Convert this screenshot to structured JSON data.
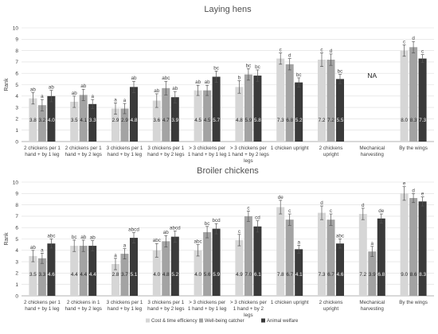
{
  "colors": {
    "cost": "#d6d6d6",
    "wellbeing": "#a3a3a3",
    "welfare": "#3a3a3a",
    "grid": "#dedede",
    "axis": "#9a9a9a",
    "title": "#505050",
    "text": "#404040"
  },
  "legend": {
    "position": "bottom-center",
    "items": [
      "Cost & time efficiency",
      "Well-being catcher",
      "Animal welfare"
    ]
  },
  "chart_data": [
    {
      "type": "bar",
      "title": "Laying hens",
      "ylabel": "Rank",
      "ylim": [
        0,
        10
      ],
      "yticks": [
        0,
        1,
        2,
        3,
        4,
        5,
        6,
        7,
        8,
        9,
        10
      ],
      "grid": true,
      "categories": [
        [
          "2 chickens per 1",
          "hand + by 1 leg"
        ],
        [
          "2 chickens per 1",
          "hand + by 2 legs"
        ],
        [
          "3 chickens per 1",
          "hand + by 1 leg"
        ],
        [
          "3 chickens per 1",
          "hand + by 2 legs"
        ],
        [
          "> 3 chickens per",
          "1 hand + by 1 leg"
        ],
        [
          "> 3 chickens per",
          "1 hand + by 2 legs",
          "legs"
        ],
        [
          "1 chicken upright"
        ],
        [
          "2 chickens",
          "upright"
        ],
        [
          "Mechanical",
          "harvesting"
        ],
        [
          "By the wings"
        ]
      ],
      "series": [
        {
          "name": "Cost & time efficiency",
          "values": [
            3.8,
            3.5,
            2.9,
            3.6,
            4.5,
            4.8,
            7.3,
            7.2,
            null,
            8.0
          ],
          "errors": [
            0.5,
            0.5,
            0.5,
            0.6,
            0.45,
            0.55,
            0.5,
            0.6,
            null,
            0.5
          ],
          "letters": [
            "ab",
            "ab",
            "a",
            "ab",
            "ab",
            "b",
            "c",
            "c",
            "",
            "c"
          ]
        },
        {
          "name": "Well-being catcher",
          "values": [
            3.2,
            4.1,
            2.9,
            4.7,
            4.5,
            5.9,
            6.8,
            7.2,
            null,
            8.3
          ],
          "errors": [
            0.5,
            0.5,
            0.45,
            0.6,
            0.45,
            0.5,
            0.5,
            0.5,
            null,
            0.5
          ],
          "letters": [
            "a",
            "ab",
            "a",
            "abc",
            "ab",
            "bc",
            "d",
            "d",
            "",
            "d"
          ]
        },
        {
          "name": "Animal welfare",
          "values": [
            4.0,
            3.3,
            4.8,
            3.9,
            5.7,
            5.8,
            5.2,
            5.5,
            null,
            7.3
          ],
          "errors": [
            0.5,
            0.4,
            0.5,
            0.5,
            0.5,
            0.5,
            0.4,
            0.4,
            null,
            0.35
          ],
          "letters": [
            "ab",
            "a",
            "ab",
            "ab",
            "bc",
            "bc",
            "bc",
            "bc",
            "",
            "c"
          ]
        }
      ],
      "value_labels": [
        [
          "3.8",
          "3.2",
          "4.0"
        ],
        [
          "3.5",
          "4.1",
          "3.3"
        ],
        [
          "2.9",
          "2.9",
          "4.8"
        ],
        [
          "3.6",
          "4.7",
          "3.9"
        ],
        [
          "4.5",
          "4.5",
          "5.7"
        ],
        [
          "4.8",
          "5.9",
          "5.8"
        ],
        [
          "7.3",
          "6.8",
          "5.2"
        ],
        [
          "7.2",
          "7.2",
          "5.5"
        ],
        [],
        [
          "8.0",
          "8.3",
          "7.3"
        ]
      ],
      "na_label": {
        "category_index": 8,
        "text": "NA"
      }
    },
    {
      "type": "bar",
      "title": "Broiler chickens",
      "ylabel": "Rank",
      "ylim": [
        0,
        10
      ],
      "yticks": [
        0,
        1,
        2,
        3,
        4,
        5,
        6,
        7,
        8,
        9,
        10
      ],
      "grid": true,
      "categories": [
        [
          "2 chickens per 1",
          "hand + by 1 leg"
        ],
        [
          "2 chickens in 1",
          "hand + by 2 legs"
        ],
        [
          "3 chickens per 1",
          "hand + by 1 leg"
        ],
        [
          "3 chickens per 1",
          "hand + by 2 legs"
        ],
        [
          "> 3 chickens per",
          "1 hand + by 1 leg"
        ],
        [
          "> 3 chickens per",
          "1 hand + by 2",
          "legs"
        ],
        [
          "1 chicken upright"
        ],
        [
          "2 chickens",
          "upright"
        ],
        [
          "Mechanical",
          "harvesting"
        ],
        [
          "By the wings"
        ]
      ],
      "series": [
        {
          "name": "Cost & time efficiency",
          "values": [
            3.5,
            4.4,
            2.8,
            4.0,
            4.0,
            4.9,
            7.8,
            7.3,
            7.2,
            9.0
          ],
          "errors": [
            0.5,
            0.5,
            0.5,
            0.6,
            0.5,
            0.5,
            0.6,
            0.6,
            0.5,
            0.6
          ],
          "letters": [
            "ab",
            "bc",
            "a",
            "abc",
            "abc",
            "c",
            "de",
            "d",
            "d",
            "e"
          ]
        },
        {
          "name": "Well-being catcher",
          "values": [
            3.3,
            4.4,
            3.7,
            4.8,
            5.6,
            7.0,
            6.7,
            6.7,
            3.9,
            8.6
          ],
          "errors": [
            0.45,
            0.5,
            0.45,
            0.5,
            0.5,
            0.45,
            0.5,
            0.5,
            0.45,
            0.4
          ],
          "letters": [
            "a",
            "ab",
            "a",
            "ab",
            "bc",
            "c",
            "c",
            "c",
            "a",
            "d"
          ]
        },
        {
          "name": "Animal welfare",
          "values": [
            4.6,
            4.4,
            5.1,
            5.2,
            5.9,
            6.1,
            4.1,
            4.6,
            6.8,
            8.3
          ],
          "errors": [
            0.4,
            0.45,
            0.45,
            0.5,
            0.45,
            0.5,
            0.35,
            0.4,
            0.4,
            0.4
          ],
          "letters": [
            "abc",
            "ab",
            "abcd",
            "abcd",
            "bcd",
            "cd",
            "a",
            "abc",
            "de",
            "e"
          ]
        }
      ],
      "value_labels": [
        [
          "3.5",
          "3.3",
          "4.6"
        ],
        [
          "4.4",
          "4.4",
          "4.4"
        ],
        [
          "2.8",
          "3.7",
          "5.1"
        ],
        [
          "4.0",
          "4.8",
          "5.2"
        ],
        [
          "4.0",
          "5.6",
          "5.9"
        ],
        [
          "4.9",
          "7.0",
          "6.1"
        ],
        [
          "7.8",
          "6.7",
          "4.1"
        ],
        [
          "7.3",
          "6.7",
          "4.6"
        ],
        [
          "7.2",
          "3.9",
          "6.8"
        ],
        [
          "9.0",
          "8.6",
          "8.3"
        ]
      ]
    }
  ]
}
